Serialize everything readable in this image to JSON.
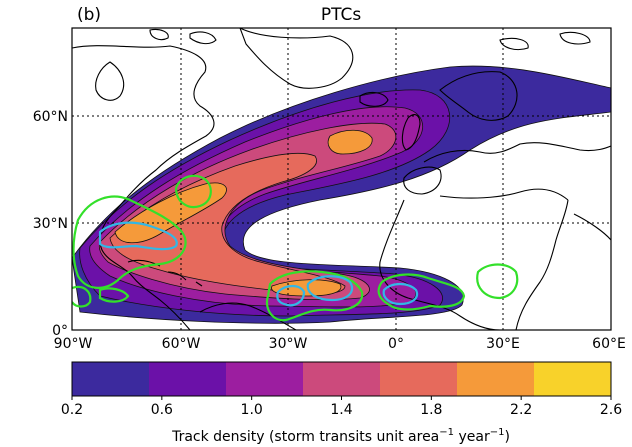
{
  "panel_label": "(b)",
  "title": "PTCs",
  "lat_labels": [
    "60°N",
    "30°N",
    "0°"
  ],
  "lon_labels": [
    "90°W",
    "60°W",
    "30°W",
    "0°",
    "30°E",
    "60°E"
  ],
  "colorbar": {
    "ticks": [
      "0.2",
      "0.6",
      "1.0",
      "1.4",
      "1.8",
      "2.2",
      "2.6"
    ],
    "colors": [
      "#3c2a9e",
      "#6b11a8",
      "#9c1ea0",
      "#cc4a7c",
      "#e66a5c",
      "#f59a3a",
      "#f8d22a"
    ],
    "label_main": "Track density (storm transits unit area",
    "sup1": "−1",
    "label_mid": " year",
    "sup2": "−1",
    "label_end": ")"
  },
  "contour_colors": {
    "green": "#33e02a",
    "cyan": "#33b7e6"
  },
  "chart_data": {
    "type": "heatmap",
    "title": "PTCs",
    "x_range_deg_lon": [
      -90,
      60
    ],
    "y_range_deg_lat": [
      0,
      85
    ],
    "x_ticks": [
      "90°W",
      "60°W",
      "30°W",
      "0°",
      "30°E",
      "60°E"
    ],
    "y_ticks": [
      "0°",
      "30°N",
      "60°N"
    ],
    "color_levels": [
      0.2,
      0.6,
      1.0,
      1.4,
      1.8,
      2.2,
      2.6
    ],
    "colorbar_label": "Track density (storm transits unit area−1 year−1)",
    "grid": "dotted"
  }
}
